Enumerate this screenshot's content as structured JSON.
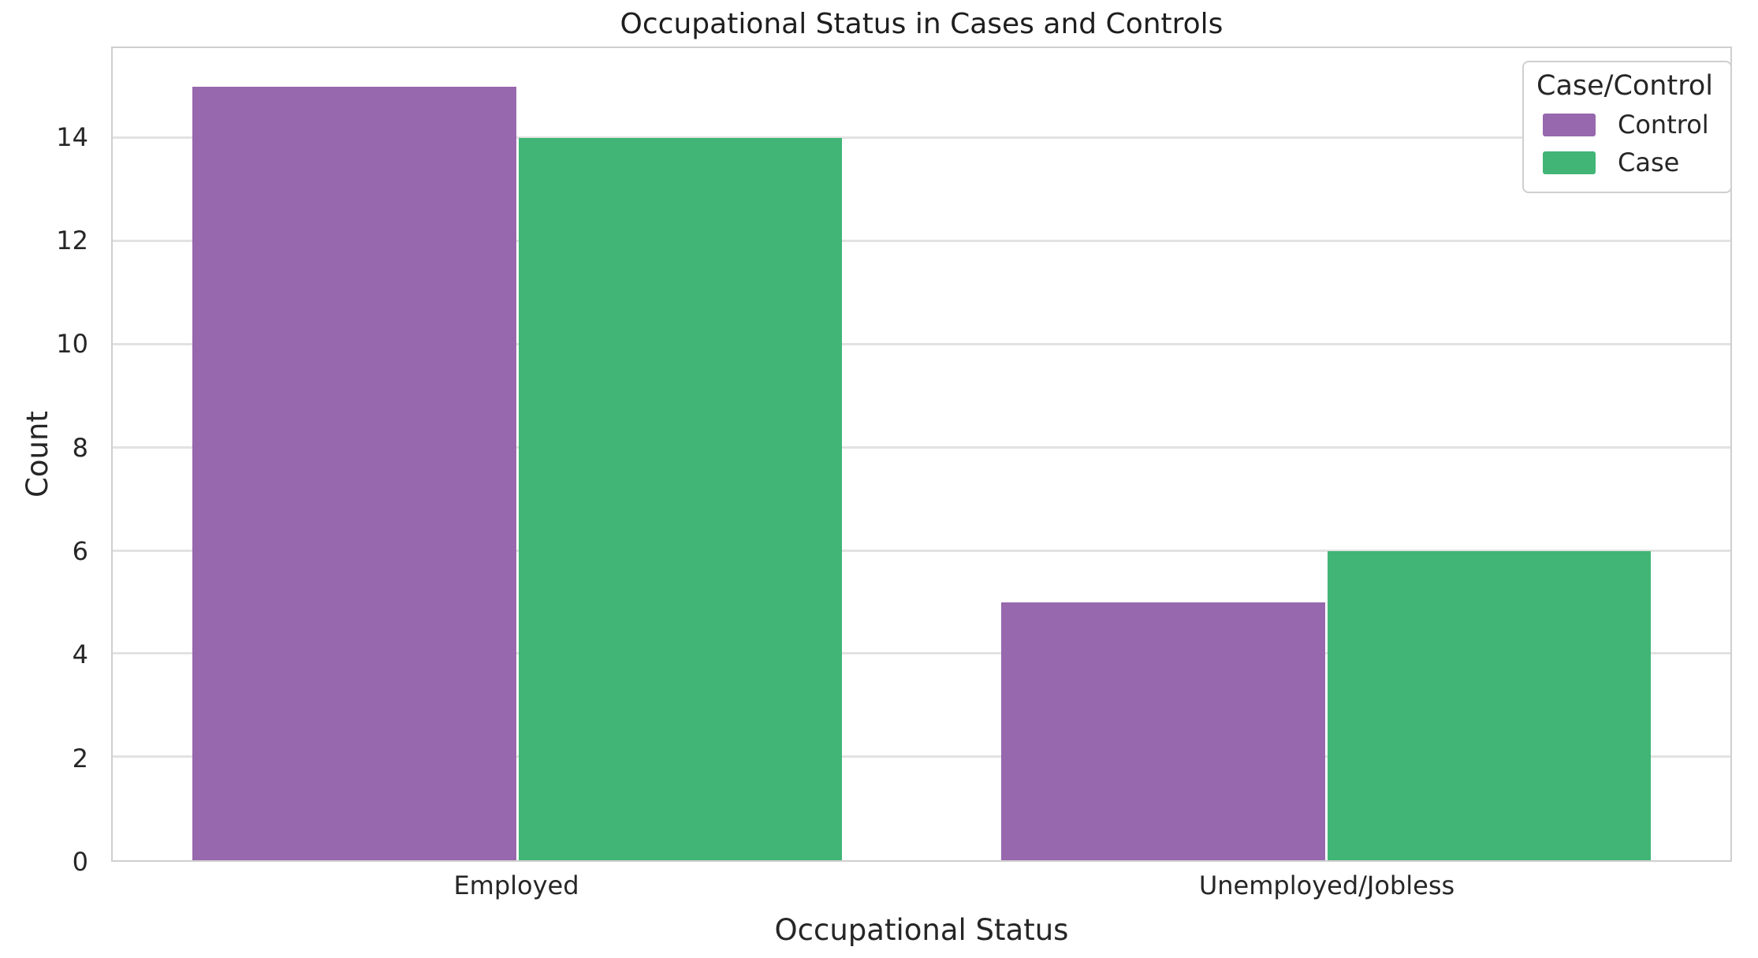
{
  "chart_data": {
    "type": "bar",
    "title": "Occupational Status in Cases and Controls",
    "xlabel": "Occupational Status",
    "ylabel": "Count",
    "categories": [
      "Employed",
      "Unemployed/Jobless"
    ],
    "series": [
      {
        "name": "Control",
        "color": "#9768AD",
        "values": [
          15,
          5
        ]
      },
      {
        "name": "Case",
        "color": "#41B576",
        "values": [
          14,
          6
        ]
      }
    ],
    "legend_title": "Case/Control",
    "legend_position": "upper right",
    "ylim": [
      0,
      15.75
    ],
    "yticks": [
      0,
      2,
      4,
      6,
      8,
      10,
      12,
      14
    ],
    "grid": true,
    "grid_color": "#e2e2e2",
    "spine_color": "#cfcfcf",
    "background_color": "#ffffff",
    "text_color": "#262626"
  }
}
